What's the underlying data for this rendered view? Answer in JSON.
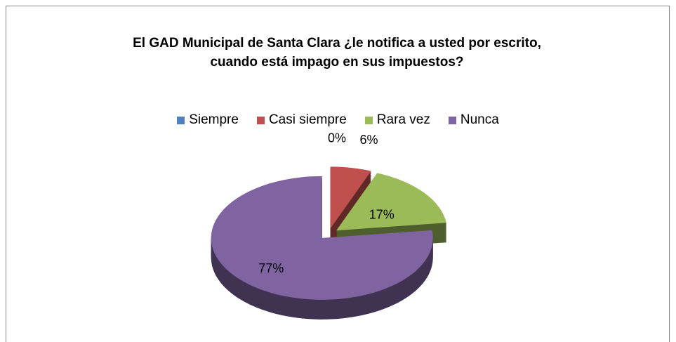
{
  "chart_data": {
    "type": "pie3d",
    "title": "El GAD Municipal de Santa Clara ¿le notifica a usted por escrito, cuando está impago en sus impuestos?",
    "categories": [
      "Siempre",
      "Casi siempre",
      "Rara vez",
      "Nunca"
    ],
    "values": [
      0,
      6,
      17,
      77
    ],
    "value_labels": [
      "0%",
      "6%",
      "17%",
      "77%"
    ],
    "colors": [
      "#4F81BD",
      "#C0504D",
      "#9BBB59",
      "#8064A2"
    ],
    "legend": "top"
  }
}
